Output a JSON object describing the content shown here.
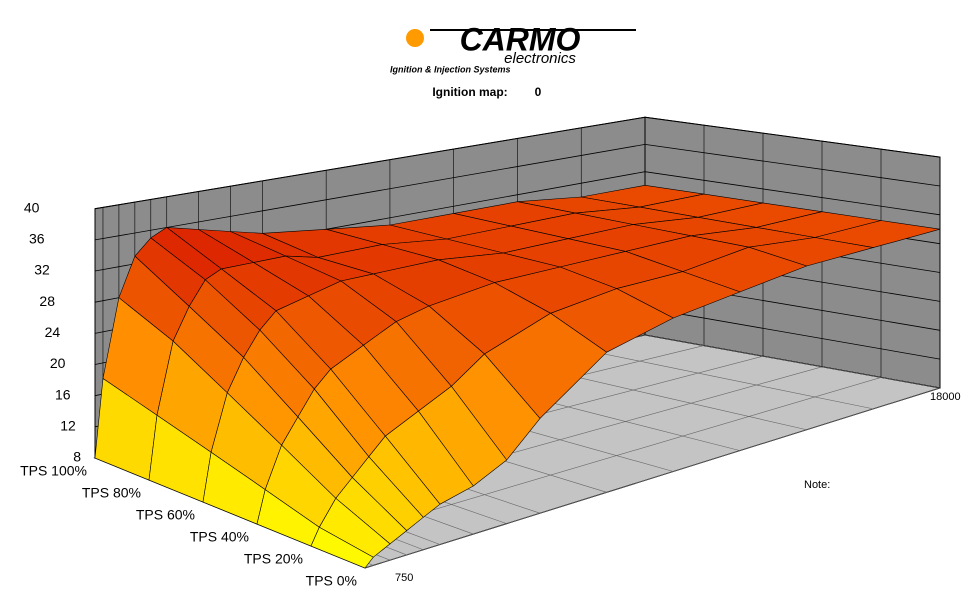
{
  "logo": {
    "brand": "CARMO",
    "sub": "electronics",
    "tagline": "Ignition & Injection Systems"
  },
  "header": {
    "label": "Ignition map:",
    "value": 0
  },
  "note": "Note:",
  "chart_data": {
    "type": "surface",
    "x": [
      750,
      1000,
      1500,
      2000,
      2500,
      3000,
      4000,
      5000,
      6000,
      8000,
      10000,
      12000,
      14000,
      16000,
      18000
    ],
    "xlim": [
      750,
      18000
    ],
    "xticks": [
      750,
      18000
    ],
    "categories": [
      "TPS 0%",
      "TPS 20%",
      "TPS 40%",
      "TPS 60%",
      "TPS 80%",
      "TPS 100%"
    ],
    "zlim": [
      8,
      40
    ],
    "zticks": [
      8,
      12,
      16,
      20,
      24,
      28,
      32,
      36,
      40
    ],
    "grid": true,
    "colorscale": [
      "#ffff00",
      "#ff8c00",
      "#d81800"
    ],
    "series": [
      {
        "name": "TPS 0%",
        "values": [
          8,
          9,
          10,
          11,
          12,
          13,
          14,
          16,
          20,
          26,
          28,
          29,
          30,
          30,
          30
        ]
      },
      {
        "name": "TPS 20%",
        "values": [
          8,
          10,
          13,
          15,
          17,
          19,
          21,
          23,
          26,
          29,
          30,
          30,
          31,
          30,
          30
        ]
      },
      {
        "name": "TPS 40%",
        "values": [
          8,
          12,
          17,
          20,
          23,
          25,
          27,
          29,
          30,
          31,
          31,
          31,
          31,
          30,
          30
        ]
      },
      {
        "name": "TPS 60%",
        "values": [
          8,
          14,
          21,
          25,
          28,
          30,
          31,
          32,
          32,
          32,
          31,
          31,
          31,
          30,
          30
        ]
      },
      {
        "name": "TPS 80%",
        "values": [
          8,
          16,
          25,
          29,
          32,
          33,
          33,
          33,
          32,
          32,
          31,
          31,
          31,
          30,
          30
        ]
      },
      {
        "name": "TPS 100%",
        "values": [
          8,
          18,
          28,
          33,
          35,
          36,
          35,
          34,
          33,
          32,
          31,
          31,
          31,
          30,
          30
        ]
      }
    ]
  }
}
